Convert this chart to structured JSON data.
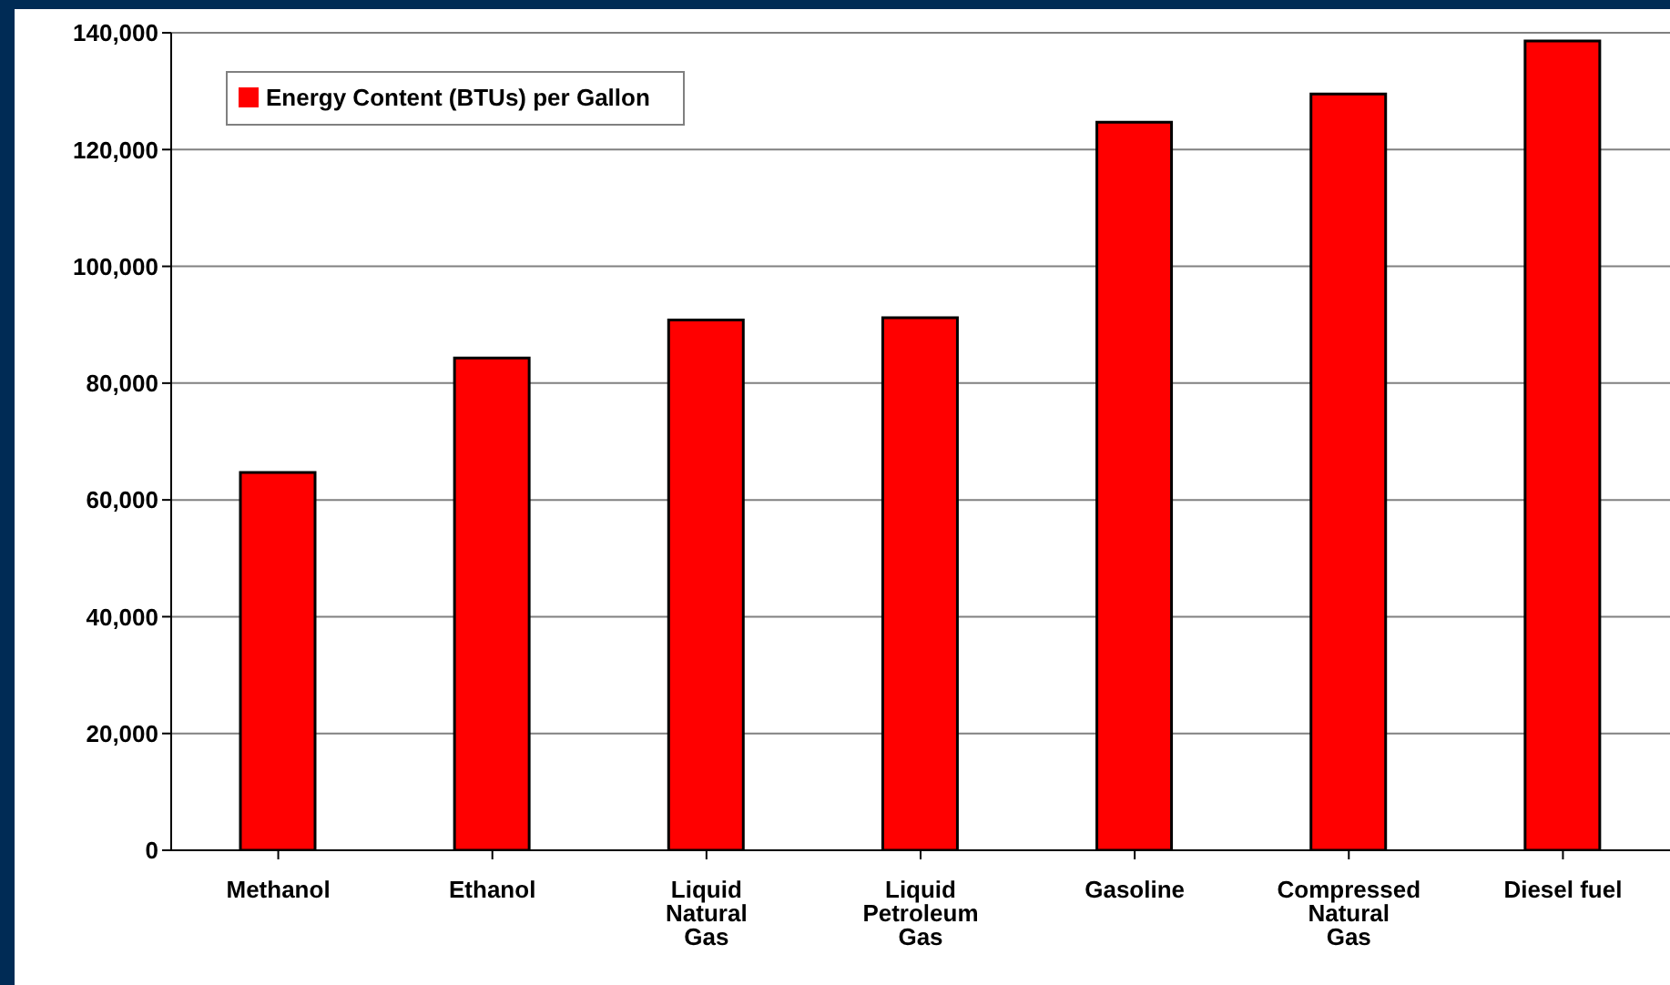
{
  "chart_data": {
    "type": "bar",
    "categories": [
      "Methanol",
      "Ethanol",
      "Liquid Natural Gas",
      "Liquid Petroleum Gas",
      "Gasoline",
      "Compressed Natural Gas",
      "Diesel fuel"
    ],
    "series": [
      {
        "name": "Energy Content (BTUs) per Gallon",
        "color": "#ff0000",
        "values": [
          64700,
          84300,
          90800,
          91200,
          124700,
          129500,
          138600
        ]
      }
    ],
    "ylim": [
      0,
      140000
    ],
    "yticks": [
      0,
      {
        "value": 20000,
        "label": "20,000"
      },
      {
        "value": 40000,
        "label": "40,000"
      },
      {
        "value": 60000,
        "label": "60,000"
      },
      {
        "value": 80000,
        "label": "80,000"
      },
      {
        "value": 100000,
        "label": "100,000"
      },
      {
        "value": 120000,
        "label": "120,000"
      },
      {
        "value": 140000,
        "label": "140,000"
      }
    ],
    "grid": "y",
    "legend": "top left"
  }
}
